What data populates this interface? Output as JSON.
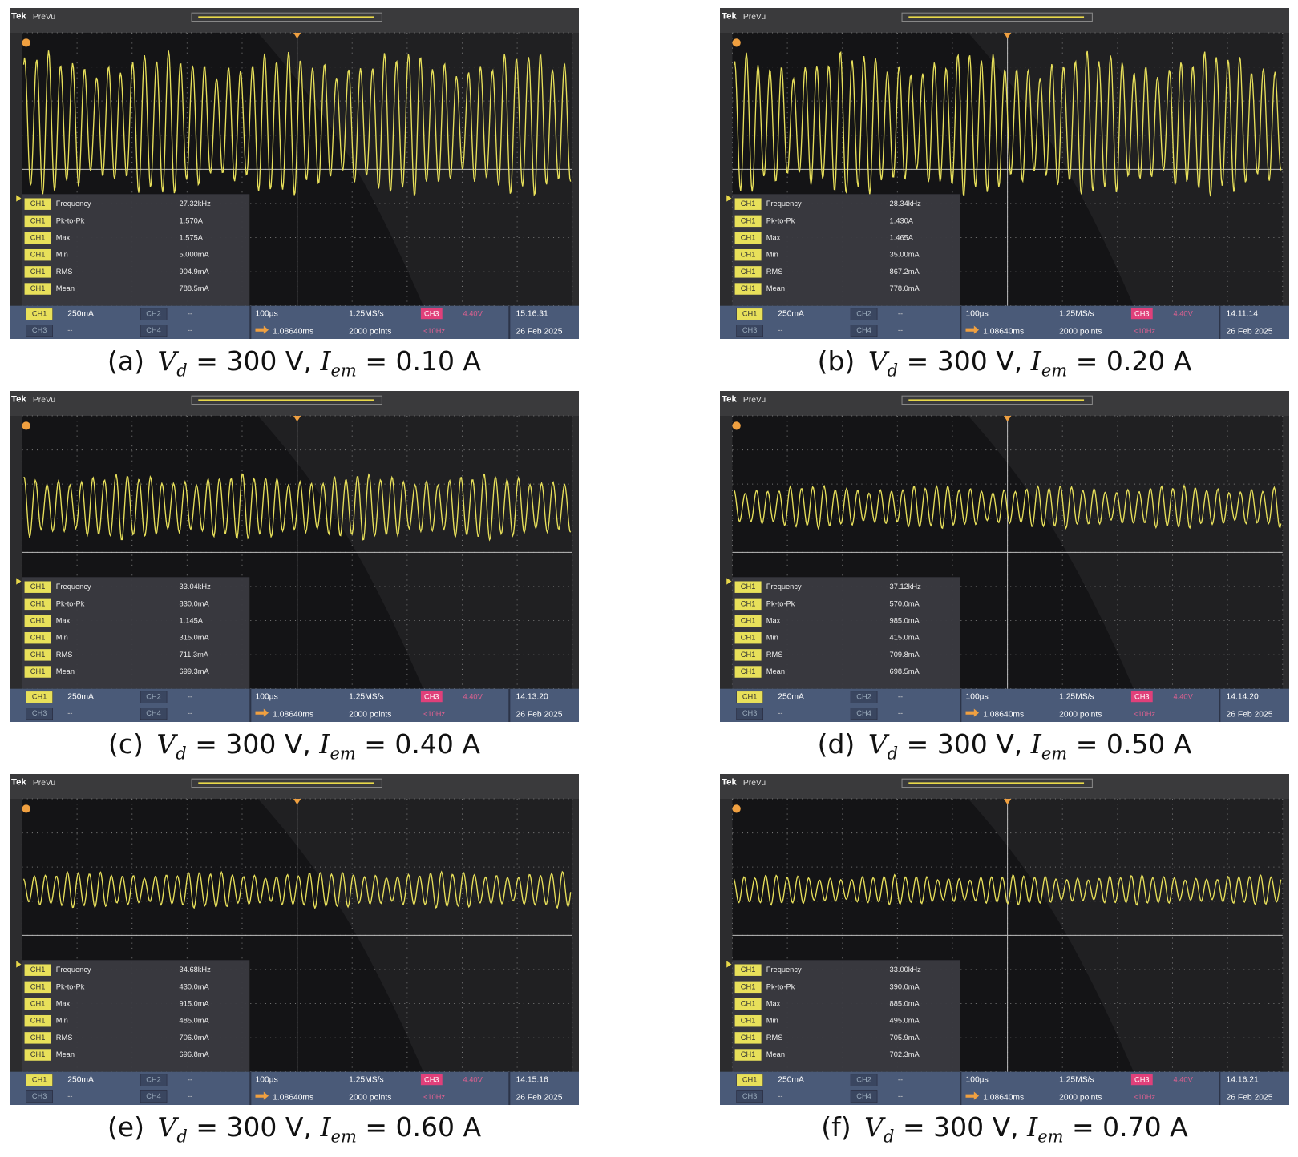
{
  "panels": [
    {
      "header": {
        "brand": "Tek",
        "mode": "PreVu"
      },
      "measurements": [
        {
          "channel": "CH1",
          "name": "Frequency",
          "value": "27.32kHz"
        },
        {
          "channel": "CH1",
          "name": "Pk-to-Pk",
          "value": "1.570A"
        },
        {
          "channel": "CH1",
          "name": "Max",
          "value": "1.575A"
        },
        {
          "channel": "CH1",
          "name": "Min",
          "value": "5.000mA"
        },
        {
          "channel": "CH1",
          "name": "RMS",
          "value": "904.9mA"
        },
        {
          "channel": "CH1",
          "name": "Mean",
          "value": "788.5mA"
        }
      ],
      "status": {
        "ch1": "CH1",
        "ch1_scale": "250mA",
        "ch2": "CH2",
        "ch2_scale": "--",
        "ch3": "CH3",
        "ch3_scale": "--",
        "ch4": "CH4",
        "ch4_scale": "--",
        "timebase": "100µs",
        "sample_rate": "1.25MS/s",
        "trigger_source": "CH3",
        "trigger_level": "4.40V",
        "delay": "1.08640ms",
        "record_length": "2000 points",
        "trigger_freq": "<10Hz",
        "time": "15:16:31",
        "date": "26 Feb 2025"
      },
      "caption": {
        "label": "(a)",
        "v": "V",
        "v_sub": "d",
        "v_value": "= 300 V,",
        "i": "I",
        "i_sub": "em",
        "i_value": "= 0.10 A"
      }
    },
    {
      "header": {
        "brand": "Tek",
        "mode": "PreVu"
      },
      "measurements": [
        {
          "channel": "CH1",
          "name": "Frequency",
          "value": "28.34kHz"
        },
        {
          "channel": "CH1",
          "name": "Pk-to-Pk",
          "value": "1.430A"
        },
        {
          "channel": "CH1",
          "name": "Max",
          "value": "1.465A"
        },
        {
          "channel": "CH1",
          "name": "Min",
          "value": "35.00mA"
        },
        {
          "channel": "CH1",
          "name": "RMS",
          "value": "867.2mA"
        },
        {
          "channel": "CH1",
          "name": "Mean",
          "value": "778.0mA"
        }
      ],
      "status": {
        "ch1": "CH1",
        "ch1_scale": "250mA",
        "ch2": "CH2",
        "ch2_scale": "--",
        "ch3": "CH3",
        "ch3_scale": "--",
        "ch4": "CH4",
        "ch4_scale": "--",
        "timebase": "100µs",
        "sample_rate": "1.25MS/s",
        "trigger_source": "CH3",
        "trigger_level": "4.40V",
        "delay": "1.08640ms",
        "record_length": "2000 points",
        "trigger_freq": "<10Hz",
        "time": "14:11:14",
        "date": "26 Feb 2025"
      },
      "caption": {
        "label": "(b)",
        "v": "V",
        "v_sub": "d",
        "v_value": "= 300 V,",
        "i": "I",
        "i_sub": "em",
        "i_value": "= 0.20 A"
      }
    },
    {
      "header": {
        "brand": "Tek",
        "mode": "PreVu"
      },
      "measurements": [
        {
          "channel": "CH1",
          "name": "Frequency",
          "value": "33.04kHz"
        },
        {
          "channel": "CH1",
          "name": "Pk-to-Pk",
          "value": "830.0mA"
        },
        {
          "channel": "CH1",
          "name": "Max",
          "value": "1.145A"
        },
        {
          "channel": "CH1",
          "name": "Min",
          "value": "315.0mA"
        },
        {
          "channel": "CH1",
          "name": "RMS",
          "value": "711.3mA"
        },
        {
          "channel": "CH1",
          "name": "Mean",
          "value": "699.3mA"
        }
      ],
      "status": {
        "ch1": "CH1",
        "ch1_scale": "250mA",
        "ch2": "CH2",
        "ch2_scale": "--",
        "ch3": "CH3",
        "ch3_scale": "--",
        "ch4": "CH4",
        "ch4_scale": "--",
        "timebase": "100µs",
        "sample_rate": "1.25MS/s",
        "trigger_source": "CH3",
        "trigger_level": "4.40V",
        "delay": "1.08640ms",
        "record_length": "2000 points",
        "trigger_freq": "<10Hz",
        "time": "14:13:20",
        "date": "26 Feb 2025"
      },
      "caption": {
        "label": "(c)",
        "v": "V",
        "v_sub": "d",
        "v_value": "= 300 V,",
        "i": "I",
        "i_sub": "em",
        "i_value": "= 0.40 A"
      }
    },
    {
      "header": {
        "brand": "Tek",
        "mode": "PreVu"
      },
      "measurements": [
        {
          "channel": "CH1",
          "name": "Frequency",
          "value": "37.12kHz"
        },
        {
          "channel": "CH1",
          "name": "Pk-to-Pk",
          "value": "570.0mA"
        },
        {
          "channel": "CH1",
          "name": "Max",
          "value": "985.0mA"
        },
        {
          "channel": "CH1",
          "name": "Min",
          "value": "415.0mA"
        },
        {
          "channel": "CH1",
          "name": "RMS",
          "value": "709.8mA"
        },
        {
          "channel": "CH1",
          "name": "Mean",
          "value": "698.5mA"
        }
      ],
      "status": {
        "ch1": "CH1",
        "ch1_scale": "250mA",
        "ch2": "CH2",
        "ch2_scale": "--",
        "ch3": "CH3",
        "ch3_scale": "--",
        "ch4": "CH4",
        "ch4_scale": "--",
        "timebase": "100µs",
        "sample_rate": "1.25MS/s",
        "trigger_source": "CH3",
        "trigger_level": "4.40V",
        "delay": "1.08640ms",
        "record_length": "2000 points",
        "trigger_freq": "<10Hz",
        "time": "14:14:20",
        "date": "26 Feb 2025"
      },
      "caption": {
        "label": "(d)",
        "v": "V",
        "v_sub": "d",
        "v_value": "= 300 V,",
        "i": "I",
        "i_sub": "em",
        "i_value": "= 0.50 A"
      }
    },
    {
      "header": {
        "brand": "Tek",
        "mode": "PreVu"
      },
      "measurements": [
        {
          "channel": "CH1",
          "name": "Frequency",
          "value": "34.68kHz"
        },
        {
          "channel": "CH1",
          "name": "Pk-to-Pk",
          "value": "430.0mA"
        },
        {
          "channel": "CH1",
          "name": "Max",
          "value": "915.0mA"
        },
        {
          "channel": "CH1",
          "name": "Min",
          "value": "485.0mA"
        },
        {
          "channel": "CH1",
          "name": "RMS",
          "value": "706.0mA"
        },
        {
          "channel": "CH1",
          "name": "Mean",
          "value": "696.8mA"
        }
      ],
      "status": {
        "ch1": "CH1",
        "ch1_scale": "250mA",
        "ch2": "CH2",
        "ch2_scale": "--",
        "ch3": "CH3",
        "ch3_scale": "--",
        "ch4": "CH4",
        "ch4_scale": "--",
        "timebase": "100µs",
        "sample_rate": "1.25MS/s",
        "trigger_source": "CH3",
        "trigger_level": "4.40V",
        "delay": "1.08640ms",
        "record_length": "2000 points",
        "trigger_freq": "<10Hz",
        "time": "14:15:16",
        "date": "26 Feb 2025"
      },
      "caption": {
        "label": "(e)",
        "v": "V",
        "v_sub": "d",
        "v_value": "= 300 V,",
        "i": "I",
        "i_sub": "em",
        "i_value": "= 0.60 A"
      }
    },
    {
      "header": {
        "brand": "Tek",
        "mode": "PreVu"
      },
      "measurements": [
        {
          "channel": "CH1",
          "name": "Frequency",
          "value": "33.00kHz"
        },
        {
          "channel": "CH1",
          "name": "Pk-to-Pk",
          "value": "390.0mA"
        },
        {
          "channel": "CH1",
          "name": "Max",
          "value": "885.0mA"
        },
        {
          "channel": "CH1",
          "name": "Min",
          "value": "495.0mA"
        },
        {
          "channel": "CH1",
          "name": "RMS",
          "value": "705.9mA"
        },
        {
          "channel": "CH1",
          "name": "Mean",
          "value": "702.3mA"
        }
      ],
      "status": {
        "ch1": "CH1",
        "ch1_scale": "250mA",
        "ch2": "CH2",
        "ch2_scale": "--",
        "ch3": "CH3",
        "ch3_scale": "--",
        "ch4": "CH4",
        "ch4_scale": "--",
        "timebase": "100µs",
        "sample_rate": "1.25MS/s",
        "trigger_source": "CH3",
        "trigger_level": "4.40V",
        "delay": "1.08640ms",
        "record_length": "2000 points",
        "trigger_freq": "<10Hz",
        "time": "14:16:21",
        "date": "26 Feb 2025"
      },
      "caption": {
        "label": "(f)",
        "v": "V",
        "v_sub": "d",
        "v_value": "= 300 V,",
        "i": "I",
        "i_sub": "em",
        "i_value": "= 0.70 A"
      }
    }
  ]
}
